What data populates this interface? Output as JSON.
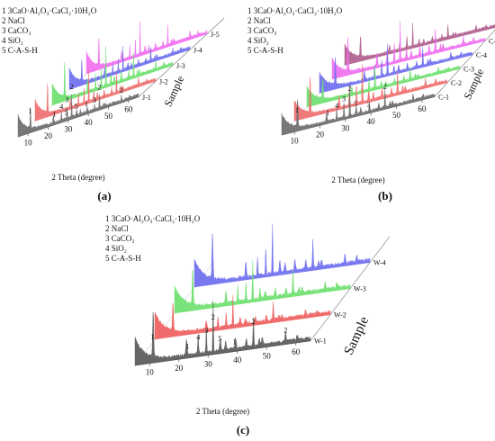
{
  "figure_labels": {
    "a": "(a)",
    "b": "(b)",
    "c": "(c)"
  },
  "chart_data": [
    {
      "type": "line",
      "panel": "a",
      "xlabel": "2 Theta (degree)",
      "zlabel": "Sample",
      "xticks": [
        "10",
        "20",
        "30",
        "40",
        "50",
        "60"
      ],
      "xlim": [
        5,
        65
      ],
      "legend": [
        {
          "num": "1",
          "text": "3CaO·Al₂O₃·CaCl₂·10H₂O"
        },
        {
          "num": "2",
          "text": "NaCl"
        },
        {
          "num": "3",
          "text": "CaCO₃"
        },
        {
          "num": "4",
          "text": "SiO₂"
        },
        {
          "num": "5",
          "text": "C-A-S-H"
        }
      ],
      "series": [
        {
          "name": "J-1",
          "color": "#6d6d6d"
        },
        {
          "name": "J-2",
          "color": "#ef6f6f"
        },
        {
          "name": "J-3",
          "color": "#6fe06f"
        },
        {
          "name": "J-4",
          "color": "#6f6fef"
        },
        {
          "name": "J-5",
          "color": "#f06ff0"
        }
      ],
      "peak_annotations": [
        {
          "label": "1",
          "x": 11
        },
        {
          "label": "1",
          "x": 23
        },
        {
          "label": "5",
          "x": 29
        },
        {
          "label": "3",
          "x": 29.4
        },
        {
          "label": "4",
          "x": 26.6
        },
        {
          "label": "2",
          "x": 31.7
        },
        {
          "label": "5",
          "x": 34
        },
        {
          "label": "1",
          "x": 39
        },
        {
          "label": "3",
          "x": 43
        },
        {
          "label": "2",
          "x": 45.5
        },
        {
          "label": "2",
          "x": 56.5
        }
      ]
    },
    {
      "type": "line",
      "panel": "b",
      "xlabel": "2 Theta (degree)",
      "zlabel": "Sample",
      "xticks": [
        "10",
        "20",
        "30",
        "40",
        "50",
        "60"
      ],
      "xlim": [
        5,
        65
      ],
      "legend": [
        {
          "num": "1",
          "text": "3CaO·Al₂O₃·CaCl₂·10H₂O"
        },
        {
          "num": "2",
          "text": "NaCl"
        },
        {
          "num": "3",
          "text": "CaCO₃"
        },
        {
          "num": "4",
          "text": "SiO₂"
        },
        {
          "num": "5",
          "text": "C-A-S-H"
        }
      ],
      "series": [
        {
          "name": "C-1",
          "color": "#6d6d6d"
        },
        {
          "name": "C-2",
          "color": "#ef6f6f"
        },
        {
          "name": "C-3",
          "color": "#6fe06f"
        },
        {
          "name": "C-4",
          "color": "#6f6fef"
        },
        {
          "name": "C-5",
          "color": "#f06ff0"
        },
        {
          "name": "C-6",
          "color": "#b0608e"
        }
      ],
      "peak_annotations": [
        {
          "label": "1",
          "x": 11
        },
        {
          "label": "1",
          "x": 23
        },
        {
          "label": "4",
          "x": 26.6
        },
        {
          "label": "3",
          "x": 29.4
        },
        {
          "label": "2",
          "x": 31.7
        },
        {
          "label": "5",
          "x": 34
        },
        {
          "label": "3",
          "x": 39
        },
        {
          "label": "2",
          "x": 45.5
        }
      ]
    },
    {
      "type": "line",
      "panel": "c",
      "xlabel": "2 Theta (degree)",
      "zlabel": "Sample",
      "xticks": [
        "10",
        "20",
        "30",
        "40",
        "50",
        "60"
      ],
      "xlim": [
        5,
        65
      ],
      "legend": [
        {
          "num": "1",
          "text": "3CaO·Al₂O₃·CaCl₂·10H₂O"
        },
        {
          "num": "2",
          "text": "NaCl"
        },
        {
          "num": "3",
          "text": "CaCO₃"
        },
        {
          "num": "4",
          "text": "SiO₂"
        },
        {
          "num": "5",
          "text": "C-A-S-H"
        }
      ],
      "series": [
        {
          "name": "W-1",
          "color": "#595959"
        },
        {
          "name": "W-2",
          "color": "#ef5f5f"
        },
        {
          "name": "W-3",
          "color": "#6fe06f"
        },
        {
          "name": "W-4",
          "color": "#6f6fef"
        }
      ],
      "peak_annotations": [
        {
          "label": "1",
          "x": 11
        },
        {
          "label": "1",
          "x": 23
        },
        {
          "label": "4",
          "x": 26.6
        },
        {
          "label": "3",
          "x": 29.4
        },
        {
          "label": "2",
          "x": 31.7
        },
        {
          "label": "5",
          "x": 34
        },
        {
          "label": "1",
          "x": 39
        },
        {
          "label": "2",
          "x": 45.5
        },
        {
          "label": "2",
          "x": 56.5
        }
      ]
    }
  ]
}
